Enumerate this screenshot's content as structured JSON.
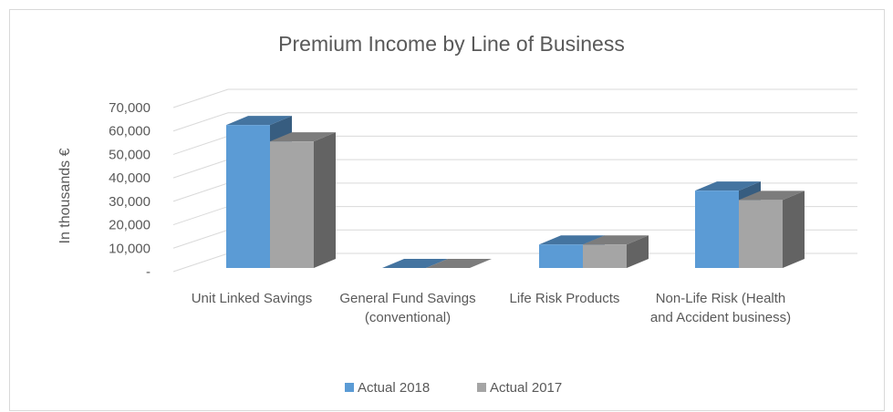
{
  "chart_data": {
    "type": "bar3d",
    "title": "Premium Income by Line of Business",
    "y_label": "In thousands €",
    "categories": [
      "Unit Linked Savings",
      "General Fund Savings (conventional)",
      "Life Risk Products",
      "Non-Life Risk (Health and Accident business)"
    ],
    "series": [
      {
        "name": "Actual 2018",
        "color": "#5b9bd5",
        "values": [
          61000,
          0,
          10000,
          33000
        ]
      },
      {
        "name": "Actual 2017",
        "color": "#a5a5a5",
        "values": [
          54000,
          0,
          10000,
          29000
        ]
      }
    ],
    "ylim": [
      0,
      70000
    ],
    "yticks": [
      {
        "value": 0,
        "label": "-"
      },
      {
        "value": 10000,
        "label": "10,000"
      },
      {
        "value": 20000,
        "label": "20,000"
      },
      {
        "value": 30000,
        "label": "30,000"
      },
      {
        "value": 40000,
        "label": "40,000"
      },
      {
        "value": 50000,
        "label": "50,000"
      },
      {
        "value": 60000,
        "label": "60,000"
      },
      {
        "value": 70000,
        "label": "70,000"
      }
    ],
    "grid": true,
    "legend": "bottom"
  }
}
